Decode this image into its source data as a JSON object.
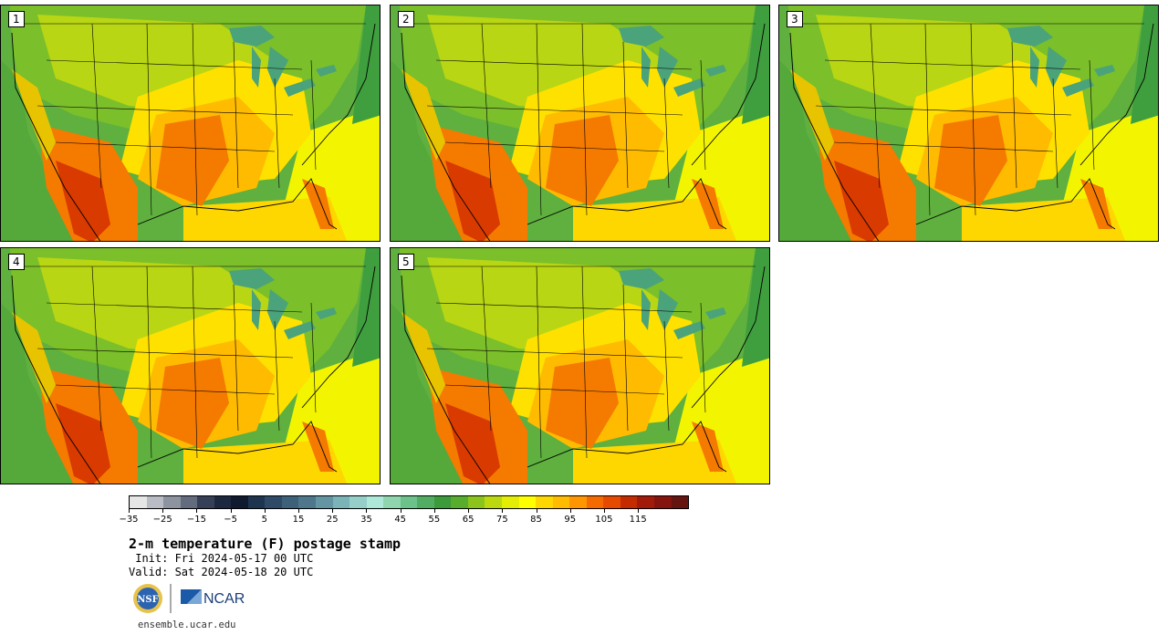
{
  "panels": [
    {
      "label": "1"
    },
    {
      "label": "2"
    },
    {
      "label": "3"
    },
    {
      "label": "4"
    },
    {
      "label": "5"
    }
  ],
  "colorbar": {
    "colors": [
      "#e6e6e6",
      "#b9bcc4",
      "#8d94a0",
      "#626c7e",
      "#363f58",
      "#1c2740",
      "#101a2e",
      "#1e3550",
      "#2e4a66",
      "#3e617a",
      "#4f778c",
      "#6495a3",
      "#7ab3b8",
      "#96cfc9",
      "#aee8d9",
      "#8fd6ae",
      "#6cc38a",
      "#50ad62",
      "#3b9a3a",
      "#58ad2c",
      "#8cc41c",
      "#bcd90f",
      "#e3ee04",
      "#ffff00",
      "#ffd700",
      "#ffbb00",
      "#ff9500",
      "#f46a00",
      "#e64a00",
      "#c42c00",
      "#a21a0a",
      "#85140f",
      "#65140f"
    ],
    "tick_labels": [
      "−35",
      "−25",
      "−15",
      "−5",
      "5",
      "15",
      "25",
      "35",
      "45",
      "55",
      "65",
      "75",
      "85",
      "95",
      "105",
      "115"
    ]
  },
  "title": "2-m temperature (F) postage stamp",
  "init": " Init: Fri 2024-05-17 00 UTC",
  "valid": "Valid: Sat 2024-05-18 20 UTC",
  "logos": {
    "left": "NSF",
    "right": "NCAR"
  },
  "site": "ensemble.ucar.edu",
  "colors": {
    "ocean_west": "#4aa33c",
    "gulf": "#ffd21a",
    "atlantic": "#fffa00",
    "lakes": "#4aa37a"
  }
}
